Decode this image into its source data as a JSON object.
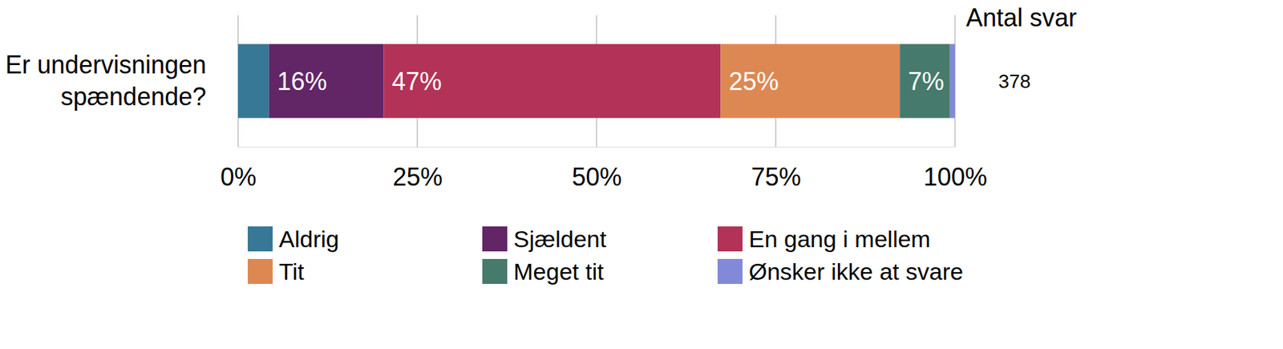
{
  "chart_data": {
    "type": "bar",
    "orientation": "horizontal",
    "stacked": true,
    "grid": true,
    "data_labels": true,
    "categories": [
      "Er undervisningen spændende?"
    ],
    "series": [
      {
        "name": "Aldrig",
        "color": "#367896",
        "values": [
          4.3
        ],
        "value_labels": [
          null
        ]
      },
      {
        "name": "Sjældent",
        "color": "#622566",
        "values": [
          16
        ],
        "value_labels": [
          "16%"
        ]
      },
      {
        "name": "En gang i mellem",
        "color": "#b23357",
        "values": [
          47
        ],
        "value_labels": [
          "47%"
        ]
      },
      {
        "name": "Tit",
        "color": "#dd8853",
        "values": [
          25
        ],
        "value_labels": [
          "25%"
        ]
      },
      {
        "name": "Meget tit",
        "color": "#467a6c",
        "values": [
          7
        ],
        "value_labels": [
          "7%"
        ]
      },
      {
        "name": "Ønsker ikke at svare",
        "color": "#8189d8",
        "values": [
          0.7
        ],
        "value_labels": [
          null
        ]
      }
    ],
    "xlim": [
      0,
      100
    ],
    "xticks": [
      {
        "value": 0,
        "label": "0%"
      },
      {
        "value": 25,
        "label": "25%"
      },
      {
        "value": 50,
        "label": "50%"
      },
      {
        "value": 75,
        "label": "75%"
      },
      {
        "value": 100,
        "label": "100%"
      }
    ],
    "count_label": "Antal svar",
    "counts": [
      378
    ]
  }
}
